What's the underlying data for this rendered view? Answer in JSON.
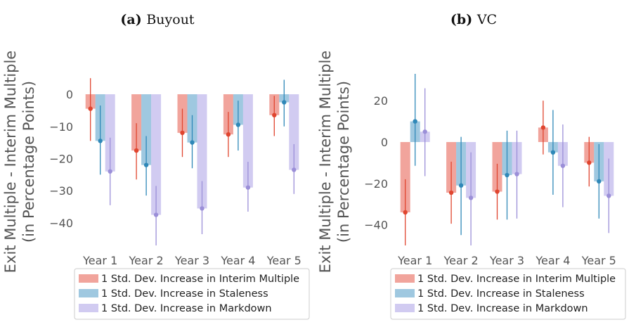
{
  "colors": {
    "interim": "#e8685a",
    "staleness": "#5fa3cc",
    "markdown": "#b3a9e8",
    "interim_point": "#e0452f",
    "staleness_point": "#2f88b8",
    "markdown_point": "#9b8fd8",
    "axis_text": "#555555"
  },
  "ylabel_line1": "Exit Multiple - Interim Multiple",
  "ylabel_line2": "(in Percentage Points)",
  "legend": [
    "1 Std. Dev. Increase in Interim Multiple",
    "1 Std. Dev. Increase in Staleness",
    "1 Std. Dev. Increase in Markdown"
  ],
  "chart_data": [
    {
      "type": "bar",
      "title_prefix": "(a)",
      "title": "Buyout",
      "categories": [
        "Year 1",
        "Year 2",
        "Year 3",
        "Year 4",
        "Year 5"
      ],
      "yticks": [
        0,
        -10,
        -20,
        -30,
        -40
      ],
      "ylim": [
        -47,
        7
      ],
      "grid": false,
      "legend_position": "below",
      "series": [
        {
          "name": "1 Std. Dev. Increase in Interim Multiple",
          "values": [
            -4.5,
            -17.5,
            -12.0,
            -12.5,
            -6.5
          ],
          "ci_low": [
            -14.5,
            -26.5,
            -19.5,
            -19.5,
            -13.0
          ],
          "ci_high": [
            5.0,
            -9.0,
            -4.5,
            -5.5,
            -0.5
          ]
        },
        {
          "name": "1 Std. Dev. Increase in Staleness",
          "values": [
            -14.5,
            -22.0,
            -15.0,
            -9.5,
            -2.5
          ],
          "ci_low": [
            -25.0,
            -31.5,
            -23.0,
            -17.5,
            -10.0
          ],
          "ci_high": [
            -3.5,
            -13.0,
            -6.5,
            -2.0,
            4.5
          ]
        },
        {
          "name": "1 Std. Dev. Increase in Markdown",
          "values": [
            -24.0,
            -37.5,
            -35.5,
            -29.0,
            -23.5
          ],
          "ci_low": [
            -34.5,
            -47.0,
            -43.5,
            -36.5,
            -31.0
          ],
          "ci_high": [
            -13.5,
            -28.5,
            -27.0,
            -21.0,
            -15.5
          ]
        }
      ]
    },
    {
      "type": "bar",
      "title_prefix": "(b)",
      "title": "VC",
      "categories": [
        "Year 1",
        "Year 2",
        "Year 3",
        "Year 4",
        "Year 5"
      ],
      "yticks": [
        20,
        0,
        -20,
        -40
      ],
      "ylim": [
        -50,
        34
      ],
      "grid": false,
      "legend_position": "below",
      "series": [
        {
          "name": "1 Std. Dev. Increase in Interim Multiple",
          "values": [
            -34.0,
            -24.5,
            -24.0,
            7.0,
            -10.0
          ],
          "ci_low": [
            -50.0,
            -39.5,
            -37.5,
            -6.0,
            -21.5
          ],
          "ci_high": [
            -18.0,
            -9.5,
            -10.5,
            20.0,
            2.5
          ]
        },
        {
          "name": "1 Std. Dev. Increase in Staleness",
          "values": [
            10.0,
            -21.0,
            -16.0,
            -5.0,
            -19.0
          ],
          "ci_low": [
            -11.5,
            -45.0,
            -37.5,
            -25.5,
            -37.0
          ],
          "ci_high": [
            33.0,
            2.5,
            5.5,
            15.5,
            -1.0
          ]
        },
        {
          "name": "1 Std. Dev. Increase in Markdown",
          "values": [
            5.0,
            -27.0,
            -15.5,
            -11.5,
            -26.0
          ],
          "ci_low": [
            -16.5,
            -50.0,
            -37.0,
            -31.5,
            -44.0
          ],
          "ci_high": [
            26.0,
            -5.0,
            5.5,
            8.5,
            -8.0
          ]
        }
      ]
    }
  ]
}
